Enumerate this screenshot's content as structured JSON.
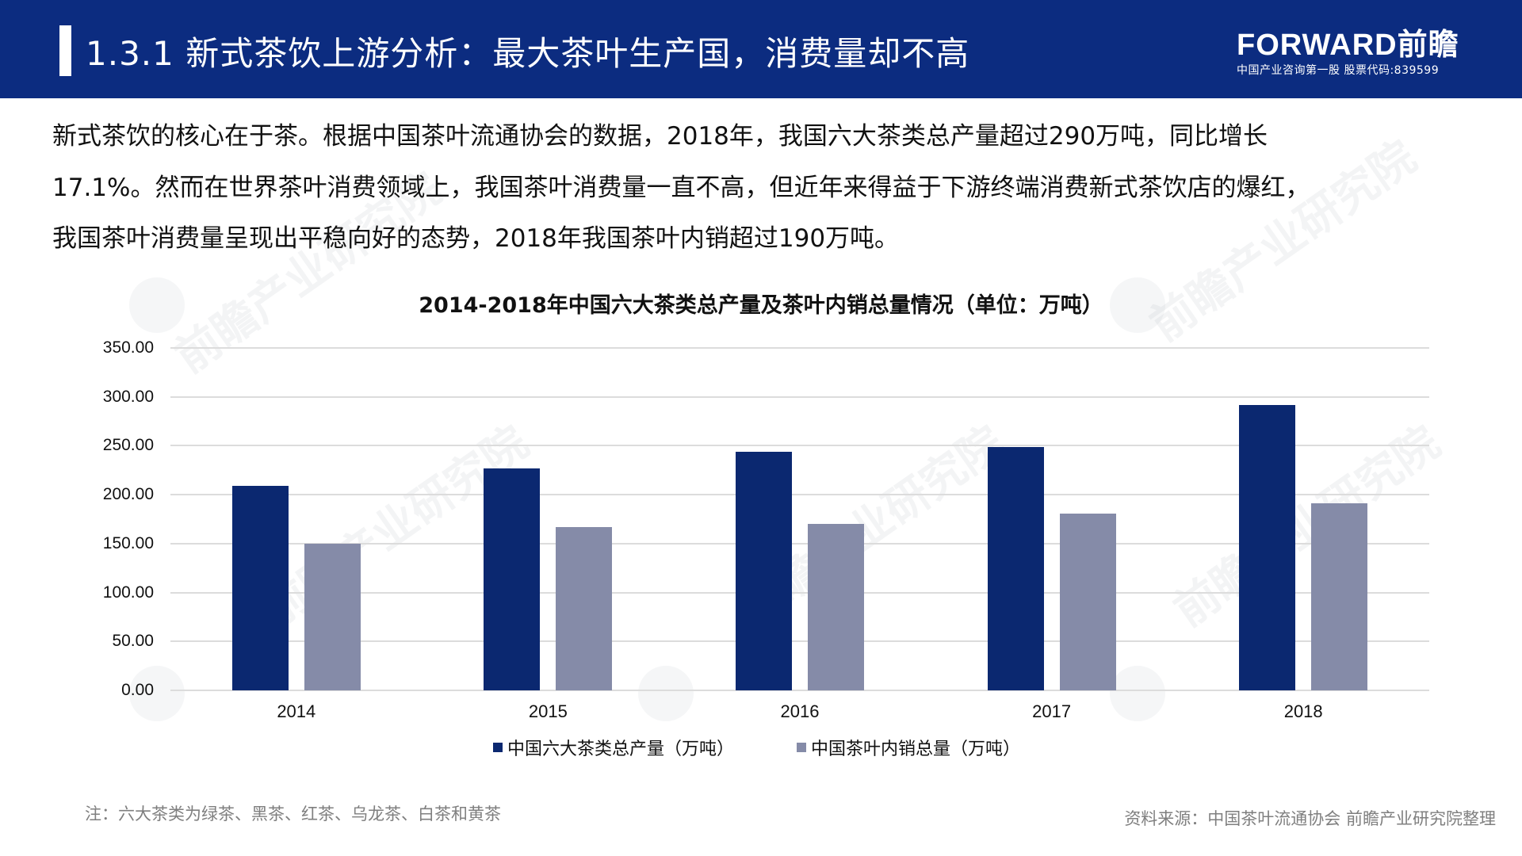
{
  "header": {
    "title": "1.3.1 新式茶饮上游分析：最大茶叶生产国，消费量却不高",
    "logo_brand": "FORWARD前瞻",
    "logo_tagline": "中国产业咨询第一股  股票代码:839599",
    "background_color": "#0c2c80"
  },
  "body_text": {
    "lines": [
      "新式茶饮的核心在于茶。根据中国茶叶流通协会的数据，2018年，我国六大茶类总产量超过290万吨，同比增长",
      "17.1%。然而在世界茶叶消费领域上，我国茶叶消费量一直不高，但近年来得益于下游终端消费新式茶饮店的爆红，",
      "我国茶叶消费量呈现出平稳向好的态势，2018年我国茶叶内销超过190万吨。"
    ]
  },
  "chart_data": {
    "type": "bar",
    "title": "2014-2018年中国六大茶类总产量及茶叶内销总量情况（单位：万吨）",
    "xlabel": "",
    "ylabel": "",
    "categories": [
      "2014",
      "2015",
      "2016",
      "2017",
      "2018"
    ],
    "series": [
      {
        "name": "中国六大茶类总产量（万吨）",
        "color": "#0b2870",
        "values": [
          209,
          227,
          244,
          249,
          292
        ]
      },
      {
        "name": "中国茶叶内销总量（万吨）",
        "color": "#858ba8",
        "values": [
          150,
          167,
          170,
          181,
          191
        ]
      }
    ],
    "ylim": [
      0,
      350
    ],
    "yticks": [
      "0.00",
      "50.00",
      "100.00",
      "150.00",
      "200.00",
      "250.00",
      "300.00",
      "350.00"
    ],
    "grid": true,
    "legend_position": "bottom"
  },
  "footer": {
    "note": "注：六大茶类为绿茶、黑茶、红茶、乌龙茶、白茶和黄茶",
    "source": "资料来源：中国茶叶流通协会 前瞻产业研究院整理"
  },
  "watermark": {
    "text": "前瞻产业研究院"
  }
}
